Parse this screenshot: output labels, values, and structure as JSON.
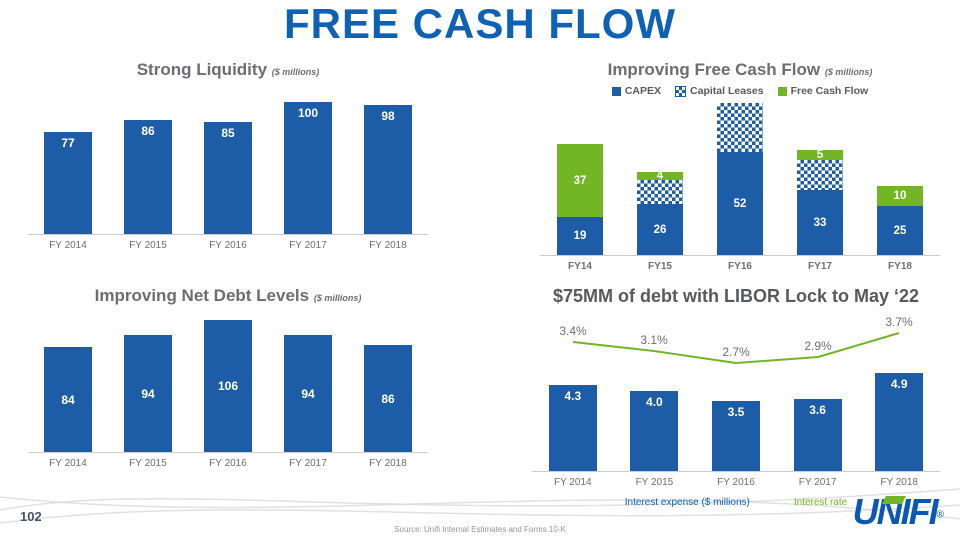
{
  "title": "FREE CASH FLOW",
  "colors": {
    "blue": "#1d5da7",
    "green": "#72b626",
    "title_blue": "#0d62b6",
    "gray_text": "#6d6e71"
  },
  "footer": {
    "page_number": "102",
    "source": "Source: Unifi Internal Estimates and Forms 10-K",
    "logo_text": "UNIFI",
    "reg": "®"
  },
  "chart_data": [
    {
      "id": "strong_liquidity",
      "type": "bar",
      "title": "Strong Liquidity",
      "subtitle": "($ millions)",
      "categories": [
        "FY 2014",
        "FY 2015",
        "FY 2016",
        "FY 2017",
        "FY 2018"
      ],
      "values": [
        77,
        86,
        85,
        100,
        98
      ],
      "ylim": [
        0,
        100
      ],
      "grid": false,
      "bar_color": "#1d5da7"
    },
    {
      "id": "improving_free_cash_flow",
      "type": "bar",
      "subtype": "stacked",
      "title": "Improving Free Cash Flow",
      "subtitle": "($ millions)",
      "legend": [
        "CAPEX",
        "Capital Leases",
        "Free Cash Flow"
      ],
      "legend_position": "top",
      "categories": [
        "FY14",
        "FY15",
        "FY16",
        "FY17",
        "FY18"
      ],
      "series": [
        {
          "name": "CAPEX",
          "values": [
            19,
            26,
            52,
            33,
            25
          ],
          "labeled": true
        },
        {
          "name": "Capital Leases",
          "values": [
            0,
            12,
            25,
            15,
            0
          ],
          "labeled": false,
          "note": "estimated from bar heights, no data labels shown"
        },
        {
          "name": "Free Cash Flow",
          "values": [
            37,
            4,
            0,
            5,
            10
          ],
          "labeled": true
        }
      ]
    },
    {
      "id": "improving_net_debt",
      "type": "bar",
      "title": "Improving Net Debt Levels",
      "subtitle": "($ millions)",
      "categories": [
        "FY 2014",
        "FY 2015",
        "FY 2016",
        "FY 2017",
        "FY 2018"
      ],
      "values": [
        84,
        94,
        106,
        94,
        86
      ],
      "ylim": [
        0,
        106
      ],
      "grid": false,
      "bar_color": "#1d5da7"
    },
    {
      "id": "libor_lock",
      "type": "bar",
      "subtype": "bar+line",
      "title": "$75MM of debt with LIBOR Lock to May ‘22",
      "categories": [
        "FY 2014",
        "FY 2015",
        "FY 2016",
        "FY 2017",
        "FY 2018"
      ],
      "series": [
        {
          "name": "Interest expense ($ millions)",
          "type": "bar",
          "values": [
            4.3,
            4.0,
            3.5,
            3.6,
            4.9
          ],
          "labels": [
            "4.3",
            "4.0",
            "3.5",
            "3.6",
            "4.9"
          ]
        },
        {
          "name": "Interest rate",
          "type": "line",
          "values": [
            3.4,
            3.1,
            2.7,
            2.9,
            3.7
          ],
          "labels": [
            "3.4%",
            "3.1%",
            "2.7%",
            "2.9%",
            "3.7%"
          ]
        }
      ],
      "legend": [
        "Interest expense ($ millions)",
        "Interest rate"
      ],
      "legend_position": "bottom"
    }
  ]
}
